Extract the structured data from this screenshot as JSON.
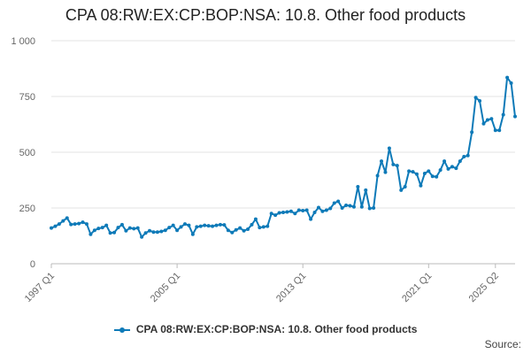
{
  "chart_data": {
    "type": "line",
    "title": "CPA 08:RW:EX:CP:BOP:NSA: 10.8. Other food products",
    "xlabel": "",
    "ylabel": "",
    "ylim": [
      0,
      1000
    ],
    "y_ticks": [
      "0",
      "250",
      "500",
      "750",
      "1 000"
    ],
    "y_tick_values": [
      0,
      250,
      500,
      750,
      1000
    ],
    "x_tick_labels": [
      "1997 Q1",
      "2005 Q1",
      "2013 Q1",
      "2021 Q1",
      "2025 Q2"
    ],
    "x_tick_indices": [
      0,
      32,
      64,
      96,
      113
    ],
    "grid": "horizontal",
    "legend_position": "bottom",
    "series": [
      {
        "name": "CPA 08:RW:EX:CP:BOP:NSA: 10.8. Other food products",
        "color": "#0e7ab8",
        "values": [
          160,
          168,
          178,
          192,
          205,
          176,
          178,
          180,
          186,
          178,
          132,
          150,
          158,
          162,
          172,
          138,
          140,
          162,
          175,
          148,
          160,
          157,
          160,
          120,
          138,
          148,
          142,
          142,
          145,
          150,
          162,
          172,
          150,
          165,
          178,
          172,
          132,
          165,
          168,
          172,
          170,
          168,
          172,
          175,
          174,
          150,
          140,
          152,
          160,
          148,
          155,
          175,
          200,
          162,
          165,
          168,
          225,
          218,
          228,
          230,
          232,
          235,
          225,
          240,
          238,
          240,
          200,
          230,
          252,
          235,
          240,
          248,
          272,
          280,
          250,
          262,
          260,
          255,
          345,
          255,
          330,
          248,
          250,
          395,
          460,
          410,
          518,
          445,
          440,
          330,
          345,
          415,
          412,
          402,
          350,
          405,
          415,
          392,
          390,
          420,
          460,
          425,
          435,
          428,
          460,
          480,
          485,
          590,
          745,
          730,
          628,
          645,
          650,
          598,
          598,
          668,
          835,
          810,
          660
        ]
      }
    ]
  },
  "legend": {
    "label": "CPA 08:RW:EX:CP:BOP:NSA: 10.8. Other food products"
  },
  "source": {
    "label": "Source:"
  }
}
